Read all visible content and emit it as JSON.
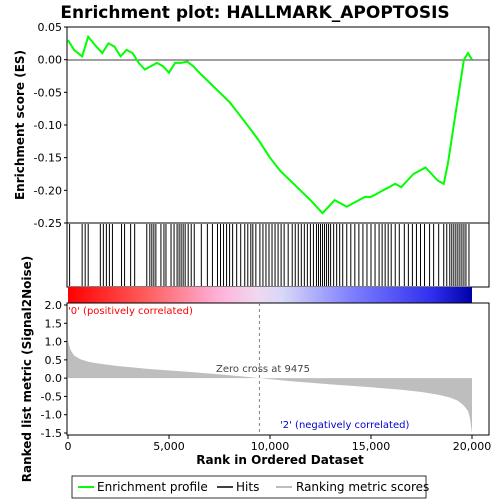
{
  "chart_data": {
    "type": "line",
    "title": "Enrichment plot: HALLMARK_APOPTOSIS",
    "top_panel": {
      "ylabel": "Enrichment score (ES)",
      "ylim": [
        -0.25,
        0.05
      ],
      "yticks": [
        "0.05",
        "0.00",
        "-0.05",
        "-0.10",
        "-0.15",
        "-0.20",
        "-0.25"
      ],
      "ytick_values": [
        0.05,
        0.0,
        -0.05,
        -0.1,
        -0.15,
        -0.2,
        -0.25
      ],
      "series": [
        {
          "name": "Enrichment profile",
          "color": "#00ff00",
          "x": [
            0,
            300,
            700,
            1000,
            1400,
            1700,
            2000,
            2300,
            2600,
            2900,
            3200,
            3500,
            3800,
            4100,
            4400,
            4700,
            5000,
            5300,
            5600,
            5900,
            6200,
            6500,
            7000,
            7500,
            8000,
            8500,
            9000,
            9475,
            10000,
            10500,
            11000,
            11500,
            12000,
            12300,
            12600,
            12900,
            13200,
            13500,
            13800,
            14100,
            14400,
            14700,
            15000,
            15300,
            15600,
            15900,
            16200,
            16500,
            16800,
            17100,
            17400,
            17700,
            18000,
            18300,
            18600,
            18800,
            19000,
            19200,
            19400,
            19600,
            19800,
            20000
          ],
          "y": [
            0.03,
            0.015,
            0.005,
            0.035,
            0.02,
            0.01,
            0.025,
            0.02,
            0.005,
            0.015,
            0.01,
            -0.005,
            -0.015,
            -0.01,
            -0.005,
            -0.01,
            -0.02,
            -0.005,
            -0.005,
            -0.003,
            -0.01,
            -0.02,
            -0.035,
            -0.05,
            -0.065,
            -0.085,
            -0.105,
            -0.125,
            -0.15,
            -0.17,
            -0.185,
            -0.2,
            -0.215,
            -0.225,
            -0.235,
            -0.225,
            -0.215,
            -0.22,
            -0.225,
            -0.22,
            -0.215,
            -0.21,
            -0.21,
            -0.205,
            -0.2,
            -0.195,
            -0.19,
            -0.195,
            -0.185,
            -0.175,
            -0.17,
            -0.165,
            -0.175,
            -0.185,
            -0.19,
            -0.16,
            -0.12,
            -0.08,
            -0.04,
            0.0,
            0.01,
            0.0
          ]
        }
      ]
    },
    "hits": {
      "name": "Hits",
      "positions": [
        80,
        700,
        850,
        1000,
        1600,
        1750,
        1900,
        2050,
        2200,
        2650,
        2800,
        3100,
        3300,
        3900,
        4050,
        4150,
        4250,
        4350,
        4600,
        4750,
        4850,
        5100,
        5250,
        5400,
        5500,
        5600,
        5700,
        5800,
        5950,
        6100,
        6250,
        6600,
        6900,
        7150,
        7400,
        7550,
        7700,
        7850,
        8000,
        8150,
        8350,
        8550,
        8750,
        8900,
        9050,
        9150,
        9300,
        9500,
        9650,
        9800,
        9950,
        10100,
        10250,
        10400,
        10550,
        10700,
        10900,
        11100,
        11250,
        11400,
        11550,
        11700,
        11850,
        12000,
        12150,
        12300,
        12400,
        12500,
        12600,
        12700,
        12800,
        12900,
        13000,
        13150,
        13300,
        13450,
        13600,
        13800,
        14000,
        14200,
        14400,
        14600,
        14800,
        15000,
        15200,
        15400,
        15550,
        15700,
        15850,
        16000,
        16200,
        16400,
        16650,
        16850,
        17050,
        17250,
        17450,
        17650,
        17900,
        18100,
        18350,
        18600,
        18750,
        18900,
        19000,
        19100,
        19200,
        19300,
        19400,
        19500,
        19600,
        19700,
        19850
      ]
    },
    "ranked_panel": {
      "ylabel": "Ranked list metric (Signal2Noise)",
      "ylim": [
        -1.5,
        2.0
      ],
      "yticks": [
        "2.0",
        "1.5",
        "1.0",
        "0.5",
        "0.0",
        "-0.5",
        "-1.0",
        "-1.5"
      ],
      "ytick_values": [
        2.0,
        1.5,
        1.0,
        0.5,
        0.0,
        -0.5,
        -1.0,
        -1.5
      ],
      "name": "Ranking metric scores",
      "x": [
        0,
        50,
        150,
        300,
        600,
        1000,
        1500,
        2500,
        4000,
        6000,
        8000,
        9475,
        11000,
        13000,
        15000,
        16500,
        17500,
        18300,
        18900,
        19300,
        19600,
        19800,
        19900,
        19960,
        20000
      ],
      "values": [
        1.05,
        0.9,
        0.75,
        0.62,
        0.52,
        0.45,
        0.4,
        0.33,
        0.25,
        0.17,
        0.08,
        0.0,
        -0.08,
        -0.17,
        -0.25,
        -0.32,
        -0.38,
        -0.45,
        -0.53,
        -0.62,
        -0.75,
        -0.9,
        -1.1,
        -1.35,
        -1.5
      ]
    },
    "annotations": {
      "zero_cross": "Zero cross at 9475",
      "zero_cross_x": 9475,
      "positive_label": "'0' (positively correlated)",
      "negative_label": "'2' (negatively correlated)"
    },
    "xaxis": {
      "label": "Rank in Ordered Dataset",
      "xlim": [
        0,
        20000
      ],
      "ticks": [
        "0",
        "5,000",
        "10,000",
        "15,000",
        "20,000"
      ],
      "tick_values": [
        0,
        5000,
        10000,
        15000,
        20000
      ]
    },
    "legend": {
      "position": "bottom",
      "entries": [
        {
          "label": "Enrichment profile",
          "color": "#00ff00"
        },
        {
          "label": "Hits",
          "color": "#000000"
        },
        {
          "label": "Ranking metric scores",
          "color": "#bebebe"
        }
      ]
    },
    "colors": {
      "es_line": "#00ff00",
      "hit": "#000000",
      "metric_fill": "#bebebe",
      "positive_text": "#ff0000",
      "negative_text": "#0000cc",
      "zero_line": "#808080"
    }
  }
}
